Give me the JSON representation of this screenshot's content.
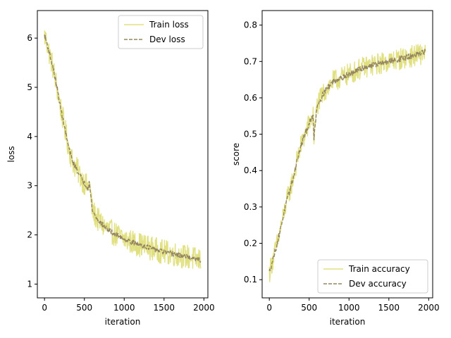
{
  "chart_data": [
    {
      "type": "line",
      "xlabel": "iteration",
      "ylabel": "loss",
      "xlim": [
        -90,
        2050
      ],
      "ylim": [
        0.72,
        6.56
      ],
      "xticks": [
        0,
        500,
        1000,
        1500,
        2000
      ],
      "yticks": [
        1,
        2,
        3,
        4,
        5,
        6
      ],
      "legend_position": "upper right",
      "series": [
        {
          "name": "Train loss",
          "color": "#e0e080",
          "style": "solid",
          "noise": 0.25,
          "x": [
            0,
            30,
            60,
            100,
            150,
            200,
            250,
            300,
            350,
            400,
            450,
            500,
            550,
            560,
            600,
            650,
            700,
            800,
            900,
            1000,
            1100,
            1200,
            1300,
            1400,
            1500,
            1600,
            1700,
            1800,
            1900,
            1960
          ],
          "y": [
            6.05,
            5.9,
            5.7,
            5.45,
            5.05,
            4.6,
            4.2,
            3.8,
            3.5,
            3.35,
            3.2,
            3.05,
            2.95,
            3.1,
            2.5,
            2.35,
            2.25,
            2.1,
            2.0,
            1.92,
            1.85,
            1.8,
            1.75,
            1.7,
            1.65,
            1.62,
            1.58,
            1.55,
            1.5,
            1.48
          ]
        },
        {
          "name": "Dev loss",
          "color": "#948560",
          "style": "dashed",
          "noise": 0.05,
          "x": [
            0,
            30,
            60,
            100,
            150,
            200,
            250,
            300,
            350,
            400,
            450,
            500,
            550,
            560,
            600,
            650,
            700,
            800,
            900,
            1000,
            1100,
            1200,
            1300,
            1400,
            1500,
            1600,
            1700,
            1800,
            1900,
            1960
          ],
          "y": [
            6.05,
            5.9,
            5.7,
            5.45,
            5.05,
            4.6,
            4.2,
            3.8,
            3.5,
            3.35,
            3.2,
            3.05,
            2.95,
            3.1,
            2.5,
            2.35,
            2.25,
            2.1,
            2.0,
            1.92,
            1.85,
            1.8,
            1.75,
            1.7,
            1.65,
            1.62,
            1.58,
            1.55,
            1.5,
            1.48
          ]
        }
      ]
    },
    {
      "type": "line",
      "xlabel": "iteration",
      "ylabel": "score",
      "xlim": [
        -90,
        2050
      ],
      "ylim": [
        0.05,
        0.84
      ],
      "xticks": [
        0,
        500,
        1000,
        1500,
        2000
      ],
      "yticks": [
        0.1,
        0.2,
        0.3,
        0.4,
        0.5,
        0.6,
        0.7,
        0.8
      ],
      "ytick_labels": [
        "0.1",
        "0.2",
        "0.3",
        "0.4",
        "0.5",
        "0.6",
        "0.7",
        "0.8"
      ],
      "legend_position": "lower right",
      "series": [
        {
          "name": "Train accuracy",
          "color": "#e0e080",
          "style": "solid",
          "noise": 0.03,
          "x": [
            0,
            50,
            100,
            150,
            200,
            250,
            300,
            350,
            400,
            450,
            500,
            550,
            560,
            600,
            700,
            800,
            900,
            1000,
            1100,
            1200,
            1300,
            1400,
            1500,
            1600,
            1700,
            1800,
            1900,
            1960
          ],
          "y": [
            0.12,
            0.16,
            0.2,
            0.25,
            0.3,
            0.34,
            0.38,
            0.43,
            0.47,
            0.5,
            0.53,
            0.55,
            0.49,
            0.58,
            0.62,
            0.645,
            0.655,
            0.665,
            0.675,
            0.685,
            0.69,
            0.695,
            0.7,
            0.705,
            0.71,
            0.715,
            0.72,
            0.73
          ]
        },
        {
          "name": "Dev accuracy",
          "color": "#948560",
          "style": "dashed",
          "noise": 0.008,
          "x": [
            0,
            50,
            100,
            150,
            200,
            250,
            300,
            350,
            400,
            450,
            500,
            550,
            560,
            600,
            700,
            800,
            900,
            1000,
            1100,
            1200,
            1300,
            1400,
            1500,
            1600,
            1700,
            1800,
            1900,
            1960
          ],
          "y": [
            0.12,
            0.16,
            0.2,
            0.25,
            0.3,
            0.34,
            0.38,
            0.43,
            0.47,
            0.5,
            0.53,
            0.55,
            0.49,
            0.58,
            0.62,
            0.645,
            0.655,
            0.665,
            0.675,
            0.685,
            0.69,
            0.695,
            0.7,
            0.705,
            0.71,
            0.715,
            0.72,
            0.73
          ]
        }
      ]
    }
  ]
}
